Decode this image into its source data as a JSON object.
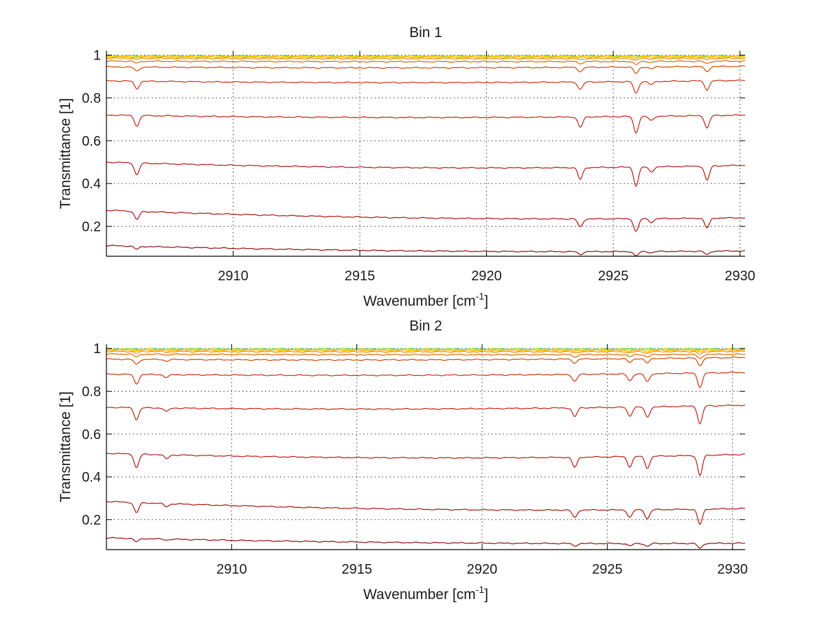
{
  "chart_data": [
    {
      "type": "line",
      "title": "Bin 1",
      "xlabel": "Wavenumber [cm",
      "xlabel_sup": "-1",
      "xlabel_suffix": "]",
      "ylabel": "Transmittance [1]",
      "xlim": [
        2905,
        2930.2
      ],
      "ylim": [
        0.06,
        1.02
      ],
      "xticks": [
        2910,
        2915,
        2920,
        2925,
        2930
      ],
      "yticks": [
        0.2,
        0.4,
        0.6,
        0.8,
        1
      ],
      "grid": true,
      "dips": [
        [
          2906.2,
          0.35
        ],
        [
          2923.7,
          0.35
        ],
        [
          2925.9,
          0.55
        ],
        [
          2926.5,
          0.15
        ],
        [
          2928.7,
          0.42
        ]
      ],
      "series": [
        {
          "start": 0.997,
          "mid": 0.996,
          "end": 0.997,
          "depth": 0.001,
          "color": "#33cc66"
        },
        {
          "start": 0.996,
          "mid": 0.995,
          "end": 0.996,
          "depth": 0.002,
          "color": "#b5d52a"
        },
        {
          "start": 0.994,
          "mid": 0.993,
          "end": 0.994,
          "depth": 0.004,
          "color": "#ffdd00"
        },
        {
          "start": 0.991,
          "mid": 0.989,
          "end": 0.991,
          "depth": 0.008,
          "color": "#ffaa00"
        },
        {
          "start": 0.985,
          "mid": 0.982,
          "end": 0.985,
          "depth": 0.015,
          "color": "#f08a00"
        },
        {
          "start": 0.972,
          "mid": 0.967,
          "end": 0.972,
          "depth": 0.028,
          "color": "#e06500"
        },
        {
          "start": 0.945,
          "mid": 0.935,
          "end": 0.948,
          "depth": 0.055,
          "color": "#d24500"
        },
        {
          "start": 0.88,
          "mid": 0.862,
          "end": 0.882,
          "depth": 0.1,
          "color": "#c83010"
        },
        {
          "start": 0.72,
          "mid": 0.697,
          "end": 0.72,
          "depth": 0.14,
          "color": "#c02010"
        },
        {
          "start": 0.5,
          "mid": 0.455,
          "end": 0.485,
          "depth": 0.16,
          "color": "#b41810"
        },
        {
          "start": 0.275,
          "mid": 0.22,
          "end": 0.24,
          "depth": 0.11,
          "color": "#a81208"
        },
        {
          "start": 0.11,
          "mid": 0.072,
          "end": 0.085,
          "depth": 0.04,
          "color": "#8e0c06"
        }
      ]
    },
    {
      "type": "line",
      "title": "Bin 2",
      "xlabel": "Wavenumber [cm",
      "xlabel_sup": "-1",
      "xlabel_suffix": "]",
      "ylabel": "Transmittance [1]",
      "xlim": [
        2905,
        2930.5
      ],
      "ylim": [
        0.06,
        1.02
      ],
      "xticks": [
        2910,
        2915,
        2920,
        2925,
        2930
      ],
      "yticks": [
        0.2,
        0.4,
        0.6,
        0.8,
        1
      ],
      "grid": true,
      "dips": [
        [
          2906.2,
          0.4
        ],
        [
          2907.4,
          0.12
        ],
        [
          2923.7,
          0.3
        ],
        [
          2925.9,
          0.3
        ],
        [
          2926.6,
          0.35
        ],
        [
          2928.7,
          0.6
        ]
      ],
      "series": [
        {
          "start": 0.998,
          "mid": 0.997,
          "end": 0.998,
          "depth": 0.001,
          "color": "#33cc66"
        },
        {
          "start": 0.997,
          "mid": 0.996,
          "end": 0.997,
          "depth": 0.003,
          "color": "#b5d52a"
        },
        {
          "start": 0.995,
          "mid": 0.994,
          "end": 0.995,
          "depth": 0.008,
          "color": "#ffdd00"
        },
        {
          "start": 0.992,
          "mid": 0.99,
          "end": 0.992,
          "depth": 0.015,
          "color": "#ffaa00"
        },
        {
          "start": 0.986,
          "mid": 0.983,
          "end": 0.986,
          "depth": 0.022,
          "color": "#f08a00"
        },
        {
          "start": 0.974,
          "mid": 0.968,
          "end": 0.973,
          "depth": 0.035,
          "color": "#e06500"
        },
        {
          "start": 0.95,
          "mid": 0.94,
          "end": 0.958,
          "depth": 0.06,
          "color": "#d24500"
        },
        {
          "start": 0.88,
          "mid": 0.866,
          "end": 0.888,
          "depth": 0.11,
          "color": "#c83010"
        },
        {
          "start": 0.725,
          "mid": 0.705,
          "end": 0.735,
          "depth": 0.14,
          "color": "#c02010"
        },
        {
          "start": 0.51,
          "mid": 0.47,
          "end": 0.505,
          "depth": 0.16,
          "color": "#b41810"
        },
        {
          "start": 0.285,
          "mid": 0.228,
          "end": 0.252,
          "depth": 0.12,
          "color": "#a81208"
        },
        {
          "start": 0.115,
          "mid": 0.082,
          "end": 0.09,
          "depth": 0.04,
          "color": "#8e0c06"
        }
      ]
    }
  ]
}
